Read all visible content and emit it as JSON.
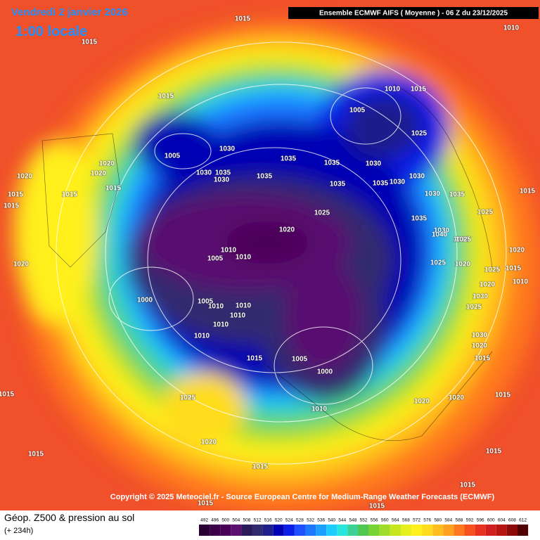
{
  "header": {
    "date": "Vendredi 2 janvier 2026",
    "time": "1:00 locale",
    "model": "Ensemble ECMWF AIFS  ( Moyenne )  - 06 Z du 23/12/2025"
  },
  "copyright": "Copyright © 2025 Meteociel.fr - Source European Centre for Medium-Range Weather Forecasts (ECMWF)",
  "footer": {
    "title": "Géop. Z500 & pression au sol",
    "lead": "(+ 234h)"
  },
  "scale": {
    "values": [
      492,
      496,
      500,
      504,
      508,
      512,
      516,
      520,
      524,
      528,
      532,
      536,
      540,
      544,
      548,
      552,
      556,
      560,
      564,
      568,
      572,
      576,
      580,
      584,
      588,
      592,
      596,
      600,
      604,
      608,
      612
    ],
    "colors": [
      "#2a0033",
      "#3c0046",
      "#4b0058",
      "#5a1070",
      "#2a1a5a",
      "#302a70",
      "#1e1e8c",
      "#0000b4",
      "#0a1ee6",
      "#1e50ff",
      "#1e78ff",
      "#1ea0ff",
      "#1ecdff",
      "#28e6dc",
      "#3cd296",
      "#50c850",
      "#78d232",
      "#a0dc28",
      "#c8e61e",
      "#e6f01e",
      "#fff01e",
      "#ffdc1e",
      "#ffbe1e",
      "#ffa01e",
      "#ff781e",
      "#f5501e",
      "#e6321e",
      "#d21e1e",
      "#b41414",
      "#8c0a0a",
      "#500000"
    ]
  },
  "isobar_labels": [
    "1015",
    "1015",
    "1010",
    "1015",
    "1010",
    "1015",
    "1005",
    "1025",
    "1005",
    "1030",
    "1030",
    "1035",
    "1030",
    "1035",
    "1035",
    "1035",
    "1030",
    "1035",
    "1030",
    "1030",
    "1035",
    "1015",
    "1030",
    "1035",
    "1025",
    "1025",
    "1020",
    "1030",
    "1020",
    "1015",
    "1015",
    "1020",
    "1020",
    "1015",
    "1015",
    "1010",
    "1005",
    "1010",
    "1000",
    "1005",
    "1010",
    "1010",
    "1010",
    "1010",
    "1010",
    "1015",
    "1005",
    "1000",
    "1010",
    "1020",
    "1020",
    "1015",
    "1025",
    "1020",
    "1015",
    "1015",
    "1015",
    "1015",
    "1015",
    "1015",
    "1020",
    "1015",
    "1020",
    "1015",
    "1010",
    "1025",
    "1020",
    "1025",
    "1020",
    "1025",
    "1030",
    "1020",
    "1015",
    "1030",
    "1025",
    "1030",
    "1035",
    "1040"
  ]
}
